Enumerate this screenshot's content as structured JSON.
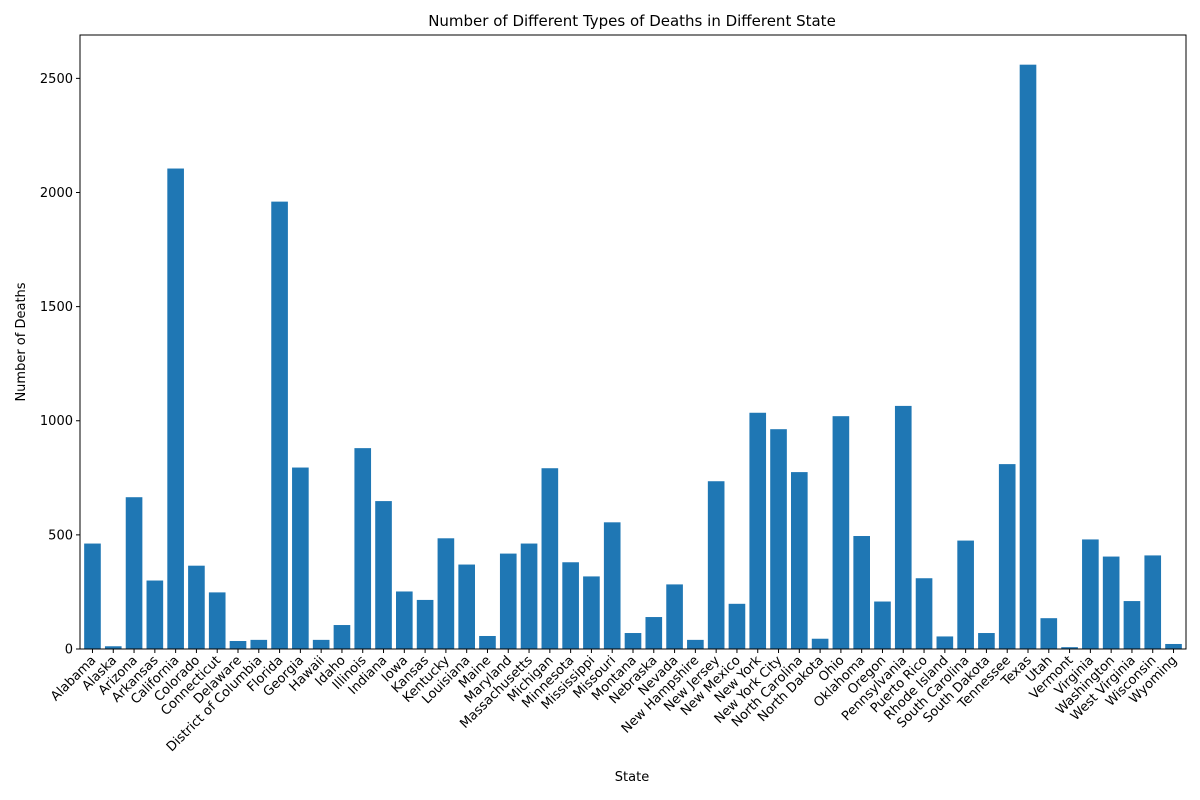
{
  "chart_data": {
    "type": "bar",
    "title": "Number of Different Types of Deaths in Different State",
    "xlabel": "State",
    "ylabel": "Number of Deaths",
    "ylim": [
      0,
      2690
    ],
    "yticks": [
      0,
      500,
      1000,
      1500,
      2000,
      2500
    ],
    "grid": false,
    "legend": "none",
    "bar_color": "#1f77b4",
    "categories": [
      "Alabama",
      "Alaska",
      "Arizona",
      "Arkansas",
      "California",
      "Colorado",
      "Connecticut",
      "Delaware",
      "District of Columbia",
      "Florida",
      "Georgia",
      "Hawaii",
      "Idaho",
      "Illinois",
      "Indiana",
      "Iowa",
      "Kansas",
      "Kentucky",
      "Louisiana",
      "Maine",
      "Maryland",
      "Massachusetts",
      "Michigan",
      "Minnesota",
      "Mississippi",
      "Missouri",
      "Montana",
      "Nebraska",
      "Nevada",
      "New Hampshire",
      "New Jersey",
      "New Mexico",
      "New York",
      "New York City",
      "North Carolina",
      "North Dakota",
      "Ohio",
      "Oklahoma",
      "Oregon",
      "Pennsylvania",
      "Puerto Rico",
      "Rhode Island",
      "South Carolina",
      "South Dakota",
      "Tennessee",
      "Texas",
      "Utah",
      "Vermont",
      "Virginia",
      "Washington",
      "West Virginia",
      "Wisconsin",
      "Wyoming"
    ],
    "values": [
      462,
      12,
      665,
      300,
      2105,
      365,
      248,
      35,
      40,
      1960,
      795,
      40,
      105,
      880,
      648,
      252,
      215,
      485,
      370,
      57,
      418,
      462,
      792,
      380,
      318,
      555,
      70,
      140,
      283,
      40,
      735,
      198,
      1035,
      963,
      775,
      45,
      1020,
      495,
      208,
      1065,
      310,
      55,
      475,
      70,
      810,
      2560,
      135,
      8,
      480,
      405,
      210,
      410,
      22
    ]
  }
}
